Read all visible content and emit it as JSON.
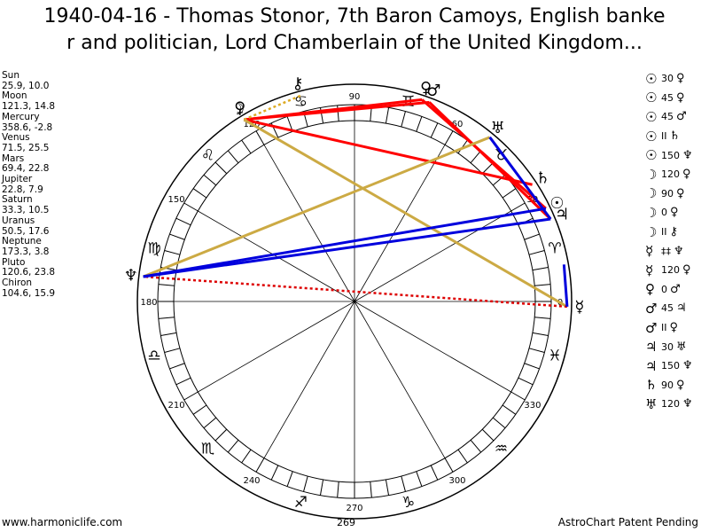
{
  "title": {
    "line1": "1940-04-16 - Thomas Stonor, 7th Baron Camoys, English banke",
    "line2": "r and politician, Lord Chamberlain of the United Kingdom..."
  },
  "planets": [
    {
      "name": "Sun",
      "pos": "25.9, 10.0"
    },
    {
      "name": "Moon",
      "pos": "121.3, 14.8"
    },
    {
      "name": "Mercury",
      "pos": "358.6, -2.8"
    },
    {
      "name": "Venus",
      "pos": "71.5, 25.5"
    },
    {
      "name": "Mars",
      "pos": "69.4, 22.8"
    },
    {
      "name": "Jupiter",
      "pos": "22.8, 7.9"
    },
    {
      "name": "Saturn",
      "pos": "33.3, 10.5"
    },
    {
      "name": "Uranus",
      "pos": "50.5, 17.6"
    },
    {
      "name": "Neptune",
      "pos": "173.3, 3.8"
    },
    {
      "name": "Pluto",
      "pos": "120.6, 23.8"
    },
    {
      "name": "Chiron",
      "pos": "104.6, 15.9"
    }
  ],
  "aspects": [
    {
      "a": "☉",
      "angle": "30",
      "b": "♀"
    },
    {
      "a": "☉",
      "angle": "45",
      "b": "♀"
    },
    {
      "a": "☉",
      "angle": "45",
      "b": "♂"
    },
    {
      "a": "☉",
      "angle": "II",
      "b": "♄"
    },
    {
      "a": "☉",
      "angle": "150",
      "b": "♆"
    },
    {
      "a": "☽",
      "angle": "120",
      "b": "♀"
    },
    {
      "a": "☽",
      "angle": "90",
      "b": "♀"
    },
    {
      "a": "☽",
      "angle": "0",
      "b": "♀"
    },
    {
      "a": "☽",
      "angle": "II",
      "b": "⚷"
    },
    {
      "a": "☿",
      "angle": "‡‡",
      "b": "♆"
    },
    {
      "a": "☿",
      "angle": "120",
      "b": "♀"
    },
    {
      "a": "♀",
      "angle": "0",
      "b": "♂"
    },
    {
      "a": "♂",
      "angle": "45",
      "b": "♃"
    },
    {
      "a": "♂",
      "angle": "II",
      "b": "♀"
    },
    {
      "a": "♃",
      "angle": "30",
      "b": "♅"
    },
    {
      "a": "♃",
      "angle": "150",
      "b": "♆"
    },
    {
      "a": "♄",
      "angle": "90",
      "b": "♀"
    },
    {
      "a": "♅",
      "angle": "120",
      "b": "♆"
    }
  ],
  "wheel": {
    "degree_labels": [
      "0",
      "30",
      "60",
      "90",
      "120",
      "150",
      "180",
      "210",
      "240",
      "270",
      "300",
      "330"
    ],
    "zodiac_signs": [
      "♈",
      "♉",
      "♊",
      "♋",
      "♌",
      "♍",
      "♎",
      "♏",
      "♐",
      "♑",
      "♒",
      "♓"
    ],
    "planet_glyphs": [
      {
        "glyph": "☉",
        "lon": 25.9
      },
      {
        "glyph": "☽",
        "lon": 121.3
      },
      {
        "glyph": "☿",
        "lon": 358.6
      },
      {
        "glyph": "♀",
        "lon": 71.5
      },
      {
        "glyph": "♂",
        "lon": 69.4
      },
      {
        "glyph": "♃",
        "lon": 22.8
      },
      {
        "glyph": "♄",
        "lon": 33.3
      },
      {
        "glyph": "♅",
        "lon": 50.5
      },
      {
        "glyph": "♆",
        "lon": 173.3
      },
      {
        "glyph": "♀",
        "lon": 120.6
      },
      {
        "glyph": "⚷",
        "lon": 104.6
      }
    ],
    "aspect_lines": [
      {
        "from": 121.3,
        "to": 71.5,
        "color": "#ff0000",
        "style": "solid"
      },
      {
        "from": 121.3,
        "to": 69.4,
        "color": "#ff0000",
        "style": "solid"
      },
      {
        "from": 121.3,
        "to": 33.3,
        "color": "#ff0000",
        "style": "solid"
      },
      {
        "from": 69.4,
        "to": 22.8,
        "color": "#ff0000",
        "style": "solid"
      },
      {
        "from": 71.5,
        "to": 25.9,
        "color": "#ff0000",
        "style": "solid"
      },
      {
        "from": 121.3,
        "to": 104.6,
        "color": "#ddaa22",
        "style": "dotted"
      },
      {
        "from": 121.3,
        "to": 358.6,
        "color": "#ccaa44",
        "style": "solid"
      },
      {
        "from": 50.5,
        "to": 173.3,
        "color": "#ccaa44",
        "style": "solid"
      },
      {
        "from": 358.6,
        "to": 173.3,
        "color": "#dd0000",
        "style": "dotted"
      },
      {
        "from": 22.8,
        "to": 173.3,
        "color": "#0000dd",
        "style": "solid"
      },
      {
        "from": 25.9,
        "to": 173.3,
        "color": "#0000dd",
        "style": "solid"
      },
      {
        "from": 50.5,
        "to": 22.8,
        "color": "#0000dd",
        "style": "solid"
      },
      {
        "from": 358.6,
        "to": 10.0,
        "color": "#0000dd",
        "style": "solid"
      }
    ]
  },
  "footer": {
    "left": "www.harmoniclife.com",
    "center": "269",
    "right": "AstroChart Patent Pending"
  }
}
